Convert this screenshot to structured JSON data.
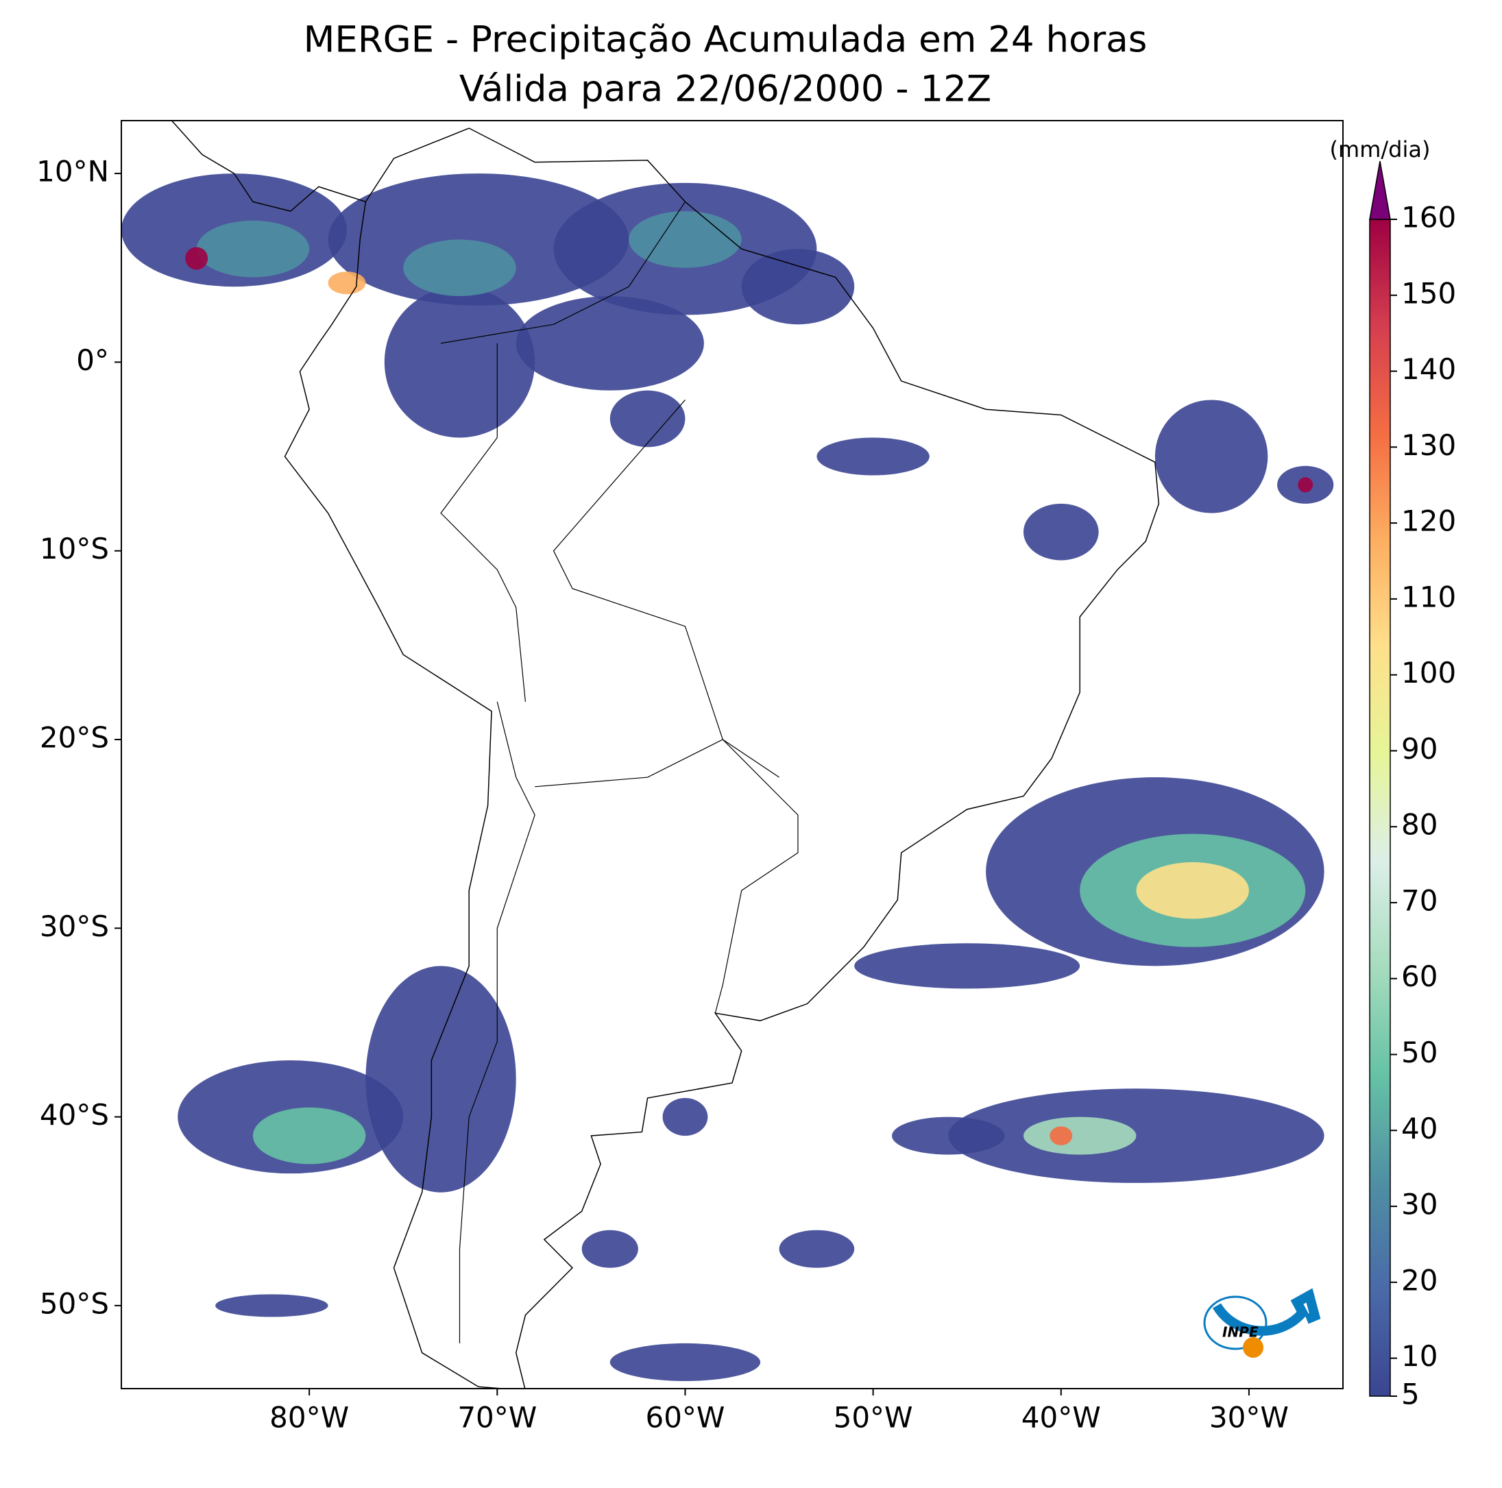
{
  "chart_data": {
    "type": "map",
    "title": "MERGE - Precipitação Acumulada em 24 horas",
    "subtitle": "Válida para 22/06/2000 - 12Z",
    "xlim": [
      -90,
      -25
    ],
    "ylim": [
      -54.4,
      12.8
    ],
    "xticks": [
      {
        "value": -80,
        "label": "80°W"
      },
      {
        "value": -70,
        "label": "70°W"
      },
      {
        "value": -60,
        "label": "60°W"
      },
      {
        "value": -50,
        "label": "50°W"
      },
      {
        "value": -40,
        "label": "40°W"
      },
      {
        "value": -30,
        "label": "30°W"
      }
    ],
    "yticks": [
      {
        "value": 10,
        "label": "10°N"
      },
      {
        "value": 0,
        "label": "0°"
      },
      {
        "value": -10,
        "label": "10°S"
      },
      {
        "value": -20,
        "label": "20°S"
      },
      {
        "value": -30,
        "label": "30°S"
      },
      {
        "value": -40,
        "label": "40°S"
      },
      {
        "value": -50,
        "label": "50°S"
      }
    ],
    "colorbar": {
      "label": "(mm/dia)",
      "lim": [
        5,
        160
      ],
      "ticks": [
        5,
        10,
        20,
        30,
        40,
        50,
        60,
        70,
        80,
        90,
        100,
        110,
        120,
        130,
        140,
        150,
        160
      ],
      "colors": [
        "#3b4592",
        "#4a6aa8",
        "#4f8fa3",
        "#66c2a5",
        "#a6dcbe",
        "#dcefe8",
        "#e6f598",
        "#fee08b",
        "#fdae61",
        "#f46d43",
        "#d53e4f",
        "#9e0142"
      ],
      "extend_color": "#7a0177"
    },
    "logo": "INPE"
  }
}
